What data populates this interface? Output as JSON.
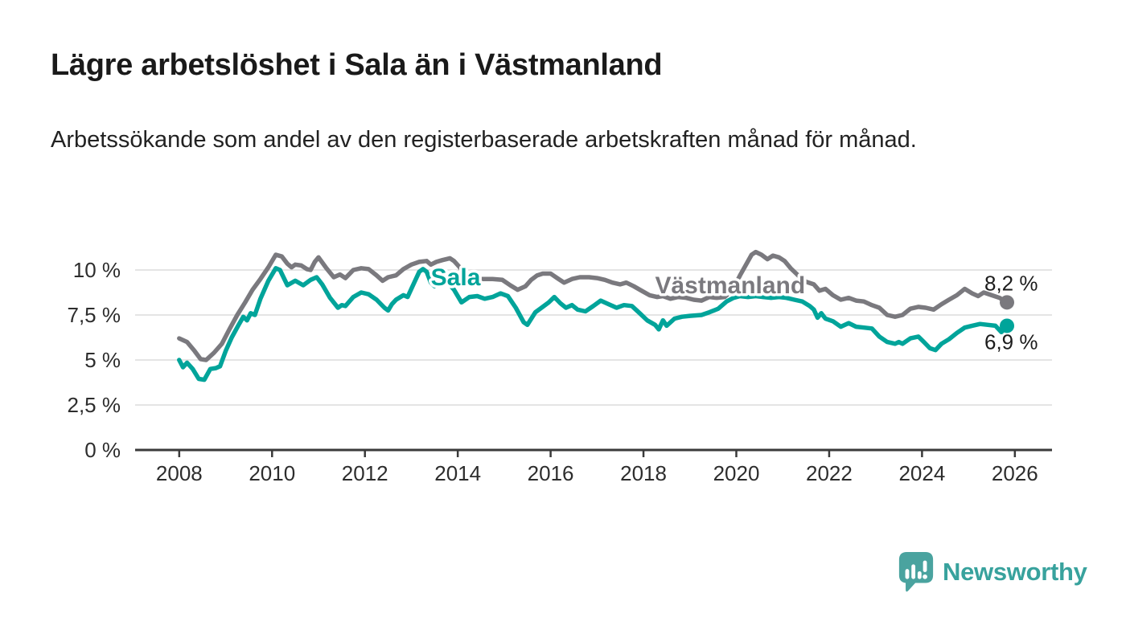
{
  "header": {
    "title": "Lägre arbetslöshet i Sala än i Västmanland",
    "subtitle": "Arbetssökande som andel av den registerbaserade arbetskraften månad för månad."
  },
  "branding": {
    "name": "Newsworthy",
    "icon": "newsworthy-speech-bubble-bar-chart-icon",
    "icon_color": "#4aa39f",
    "text_color": "#38a29d"
  },
  "chart_data": {
    "type": "line",
    "title": "Lägre arbetslöshet i Sala än i Västmanland",
    "xlabel": "",
    "ylabel": "",
    "legend_position": "inline-labels",
    "grid": true,
    "xlim": [
      2007.05,
      2026.8
    ],
    "ylim": [
      0,
      12.5
    ],
    "x_ticks": [
      2008,
      2010,
      2012,
      2014,
      2016,
      2018,
      2020,
      2022,
      2024,
      2026
    ],
    "y_ticks": [
      {
        "v": 0,
        "label": "0 %"
      },
      {
        "v": 2.5,
        "label": "2,5 %"
      },
      {
        "v": 5,
        "label": "5 %"
      },
      {
        "v": 7.5,
        "label": "7,5 %"
      },
      {
        "v": 10,
        "label": "10 %"
      }
    ],
    "colors": {
      "grid": "#dcdcdc",
      "axis": "#3a3a3a",
      "tick_text": "#2d2d2d",
      "end_label_text": "#1c1c1c"
    },
    "series": [
      {
        "name": "Västmanland",
        "color": "#7a797e",
        "end_label": "8,2 %",
        "end_label_side": "above",
        "label_x": 2018.25,
        "label_y": 9.15,
        "points": [
          [
            2008.0,
            6.2
          ],
          [
            2008.17,
            6.0
          ],
          [
            2008.33,
            5.5
          ],
          [
            2008.46,
            5.05
          ],
          [
            2008.58,
            5.0
          ],
          [
            2008.75,
            5.4
          ],
          [
            2008.92,
            5.9
          ],
          [
            2009.08,
            6.7
          ],
          [
            2009.25,
            7.5
          ],
          [
            2009.42,
            8.2
          ],
          [
            2009.58,
            8.9
          ],
          [
            2009.75,
            9.5
          ],
          [
            2009.92,
            10.15
          ],
          [
            2010.08,
            10.85
          ],
          [
            2010.21,
            10.75
          ],
          [
            2010.33,
            10.35
          ],
          [
            2010.42,
            10.15
          ],
          [
            2010.5,
            10.3
          ],
          [
            2010.63,
            10.25
          ],
          [
            2010.75,
            10.05
          ],
          [
            2010.83,
            10.0
          ],
          [
            2010.92,
            10.45
          ],
          [
            2011.0,
            10.7
          ],
          [
            2011.17,
            10.1
          ],
          [
            2011.33,
            9.6
          ],
          [
            2011.46,
            9.75
          ],
          [
            2011.58,
            9.55
          ],
          [
            2011.75,
            10.0
          ],
          [
            2011.92,
            10.1
          ],
          [
            2012.08,
            10.05
          ],
          [
            2012.25,
            9.7
          ],
          [
            2012.38,
            9.4
          ],
          [
            2012.5,
            9.6
          ],
          [
            2012.67,
            9.7
          ],
          [
            2012.83,
            10.05
          ],
          [
            2013.0,
            10.3
          ],
          [
            2013.17,
            10.45
          ],
          [
            2013.33,
            10.5
          ],
          [
            2013.42,
            10.3
          ],
          [
            2013.54,
            10.45
          ],
          [
            2013.67,
            10.55
          ],
          [
            2013.83,
            10.65
          ],
          [
            2013.92,
            10.5
          ],
          [
            2014.04,
            10.15
          ],
          [
            2014.17,
            9.7
          ],
          [
            2014.29,
            9.55
          ],
          [
            2014.5,
            9.5
          ],
          [
            2014.75,
            9.5
          ],
          [
            2014.96,
            9.45
          ],
          [
            2015.13,
            9.15
          ],
          [
            2015.29,
            8.9
          ],
          [
            2015.46,
            9.1
          ],
          [
            2015.58,
            9.45
          ],
          [
            2015.71,
            9.7
          ],
          [
            2015.83,
            9.8
          ],
          [
            2016.0,
            9.8
          ],
          [
            2016.17,
            9.5
          ],
          [
            2016.29,
            9.3
          ],
          [
            2016.46,
            9.5
          ],
          [
            2016.63,
            9.6
          ],
          [
            2016.83,
            9.6
          ],
          [
            2017.0,
            9.55
          ],
          [
            2017.17,
            9.45
          ],
          [
            2017.33,
            9.3
          ],
          [
            2017.5,
            9.2
          ],
          [
            2017.63,
            9.3
          ],
          [
            2017.79,
            9.1
          ],
          [
            2017.96,
            8.85
          ],
          [
            2018.13,
            8.6
          ],
          [
            2018.29,
            8.5
          ],
          [
            2018.42,
            8.55
          ],
          [
            2018.58,
            8.4
          ],
          [
            2018.75,
            8.5
          ],
          [
            2018.92,
            8.45
          ],
          [
            2019.08,
            8.35
          ],
          [
            2019.25,
            8.3
          ],
          [
            2019.42,
            8.5
          ],
          [
            2019.58,
            8.45
          ],
          [
            2019.75,
            8.5
          ],
          [
            2019.92,
            8.9
          ],
          [
            2020.08,
            9.7
          ],
          [
            2020.21,
            10.3
          ],
          [
            2020.33,
            10.85
          ],
          [
            2020.42,
            11.0
          ],
          [
            2020.54,
            10.85
          ],
          [
            2020.67,
            10.6
          ],
          [
            2020.79,
            10.8
          ],
          [
            2020.92,
            10.7
          ],
          [
            2021.04,
            10.5
          ],
          [
            2021.17,
            10.1
          ],
          [
            2021.33,
            9.7
          ],
          [
            2021.5,
            9.35
          ],
          [
            2021.67,
            9.2
          ],
          [
            2021.79,
            8.85
          ],
          [
            2021.92,
            8.95
          ],
          [
            2022.08,
            8.6
          ],
          [
            2022.25,
            8.35
          ],
          [
            2022.42,
            8.45
          ],
          [
            2022.58,
            8.3
          ],
          [
            2022.75,
            8.25
          ],
          [
            2022.92,
            8.05
          ],
          [
            2023.08,
            7.9
          ],
          [
            2023.25,
            7.5
          ],
          [
            2023.42,
            7.4
          ],
          [
            2023.58,
            7.5
          ],
          [
            2023.75,
            7.85
          ],
          [
            2023.92,
            7.95
          ],
          [
            2024.08,
            7.9
          ],
          [
            2024.25,
            7.8
          ],
          [
            2024.42,
            8.1
          ],
          [
            2024.58,
            8.35
          ],
          [
            2024.75,
            8.6
          ],
          [
            2024.92,
            8.95
          ],
          [
            2025.08,
            8.7
          ],
          [
            2025.21,
            8.55
          ],
          [
            2025.33,
            8.75
          ],
          [
            2025.5,
            8.6
          ],
          [
            2025.67,
            8.45
          ],
          [
            2025.83,
            8.2
          ]
        ]
      },
      {
        "name": "Sala",
        "color": "#00a49a",
        "end_label": "6,9 %",
        "end_label_side": "below",
        "label_x": 2013.42,
        "label_y": 9.6,
        "points": [
          [
            2008.0,
            5.0
          ],
          [
            2008.08,
            4.6
          ],
          [
            2008.17,
            4.85
          ],
          [
            2008.29,
            4.5
          ],
          [
            2008.42,
            3.95
          ],
          [
            2008.54,
            3.9
          ],
          [
            2008.67,
            4.5
          ],
          [
            2008.79,
            4.55
          ],
          [
            2008.88,
            4.65
          ],
          [
            2009.0,
            5.5
          ],
          [
            2009.13,
            6.25
          ],
          [
            2009.29,
            7.0
          ],
          [
            2009.38,
            7.4
          ],
          [
            2009.46,
            7.2
          ],
          [
            2009.54,
            7.6
          ],
          [
            2009.63,
            7.5
          ],
          [
            2009.75,
            8.4
          ],
          [
            2009.92,
            9.4
          ],
          [
            2010.08,
            10.1
          ],
          [
            2010.17,
            10.0
          ],
          [
            2010.33,
            9.15
          ],
          [
            2010.5,
            9.4
          ],
          [
            2010.67,
            9.15
          ],
          [
            2010.83,
            9.45
          ],
          [
            2010.96,
            9.6
          ],
          [
            2011.08,
            9.2
          ],
          [
            2011.25,
            8.45
          ],
          [
            2011.42,
            7.9
          ],
          [
            2011.5,
            8.05
          ],
          [
            2011.58,
            8.0
          ],
          [
            2011.75,
            8.5
          ],
          [
            2011.92,
            8.75
          ],
          [
            2012.08,
            8.65
          ],
          [
            2012.25,
            8.35
          ],
          [
            2012.42,
            7.9
          ],
          [
            2012.5,
            7.75
          ],
          [
            2012.58,
            8.1
          ],
          [
            2012.67,
            8.35
          ],
          [
            2012.83,
            8.6
          ],
          [
            2012.92,
            8.5
          ],
          [
            2013.08,
            9.4
          ],
          [
            2013.17,
            9.9
          ],
          [
            2013.25,
            10.05
          ],
          [
            2013.33,
            9.9
          ],
          [
            2013.42,
            9.3
          ],
          [
            2013.5,
            9.1
          ],
          [
            2013.58,
            9.6
          ],
          [
            2013.75,
            9.4
          ],
          [
            2013.92,
            8.9
          ],
          [
            2014.08,
            8.2
          ],
          [
            2014.25,
            8.5
          ],
          [
            2014.42,
            8.55
          ],
          [
            2014.58,
            8.4
          ],
          [
            2014.75,
            8.5
          ],
          [
            2014.92,
            8.7
          ],
          [
            2015.08,
            8.55
          ],
          [
            2015.25,
            7.9
          ],
          [
            2015.42,
            7.1
          ],
          [
            2015.5,
            6.95
          ],
          [
            2015.67,
            7.65
          ],
          [
            2015.83,
            7.95
          ],
          [
            2015.96,
            8.2
          ],
          [
            2016.08,
            8.5
          ],
          [
            2016.21,
            8.15
          ],
          [
            2016.33,
            7.9
          ],
          [
            2016.46,
            8.05
          ],
          [
            2016.58,
            7.8
          ],
          [
            2016.75,
            7.7
          ],
          [
            2016.92,
            8.0
          ],
          [
            2017.08,
            8.3
          ],
          [
            2017.25,
            8.1
          ],
          [
            2017.42,
            7.9
          ],
          [
            2017.58,
            8.05
          ],
          [
            2017.75,
            8.0
          ],
          [
            2017.92,
            7.6
          ],
          [
            2018.08,
            7.2
          ],
          [
            2018.25,
            6.95
          ],
          [
            2018.33,
            6.7
          ],
          [
            2018.42,
            7.2
          ],
          [
            2018.5,
            6.9
          ],
          [
            2018.67,
            7.3
          ],
          [
            2018.83,
            7.4
          ],
          [
            2019.0,
            7.45
          ],
          [
            2019.25,
            7.5
          ],
          [
            2019.42,
            7.65
          ],
          [
            2019.61,
            7.85
          ],
          [
            2019.79,
            8.25
          ],
          [
            2019.94,
            8.45
          ],
          [
            2020.08,
            8.55
          ],
          [
            2020.25,
            8.5
          ],
          [
            2020.42,
            8.55
          ],
          [
            2020.58,
            8.5
          ],
          [
            2020.75,
            8.45
          ],
          [
            2020.92,
            8.5
          ],
          [
            2021.08,
            8.45
          ],
          [
            2021.25,
            8.35
          ],
          [
            2021.42,
            8.25
          ],
          [
            2021.58,
            8.0
          ],
          [
            2021.67,
            7.8
          ],
          [
            2021.75,
            7.35
          ],
          [
            2021.83,
            7.6
          ],
          [
            2021.92,
            7.3
          ],
          [
            2022.08,
            7.15
          ],
          [
            2022.25,
            6.85
          ],
          [
            2022.42,
            7.05
          ],
          [
            2022.58,
            6.85
          ],
          [
            2022.75,
            6.8
          ],
          [
            2022.92,
            6.75
          ],
          [
            2023.08,
            6.3
          ],
          [
            2023.25,
            6.0
          ],
          [
            2023.42,
            5.9
          ],
          [
            2023.5,
            6.0
          ],
          [
            2023.58,
            5.9
          ],
          [
            2023.75,
            6.2
          ],
          [
            2023.92,
            6.3
          ],
          [
            2024.04,
            6.0
          ],
          [
            2024.17,
            5.65
          ],
          [
            2024.29,
            5.55
          ],
          [
            2024.42,
            5.9
          ],
          [
            2024.58,
            6.15
          ],
          [
            2024.75,
            6.5
          ],
          [
            2024.92,
            6.8
          ],
          [
            2025.08,
            6.9
          ],
          [
            2025.25,
            7.0
          ],
          [
            2025.42,
            6.95
          ],
          [
            2025.58,
            6.9
          ],
          [
            2025.71,
            6.55
          ],
          [
            2025.83,
            6.9
          ]
        ]
      }
    ]
  }
}
